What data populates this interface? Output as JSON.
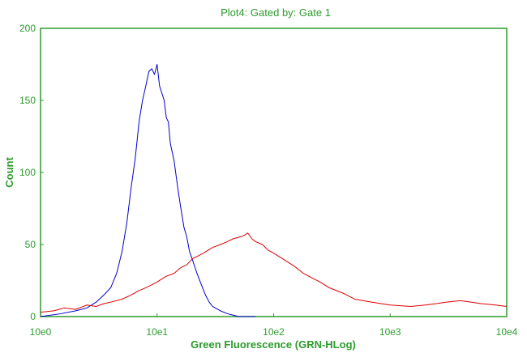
{
  "chart_data": {
    "type": "line",
    "title": "Plot4:  Gated by: Gate 1",
    "xlabel": "Green Fluorescence (GRN-HLog)",
    "ylabel": "Count",
    "x_scale": "log",
    "xlim": [
      1,
      10000
    ],
    "ylim": [
      0,
      200
    ],
    "x_ticks": [
      "10e0",
      "10e1",
      "10e2",
      "10e3",
      "10e4"
    ],
    "y_ticks": [
      "0",
      "50",
      "100",
      "150",
      "200"
    ],
    "grid": false,
    "series": [
      {
        "color": "#0000cc",
        "x": [
          1,
          1.5,
          2,
          2.5,
          3,
          3.5,
          4,
          4.5,
          5,
          5.5,
          6,
          6.5,
          7,
          7.5,
          8,
          8.5,
          9,
          9.5,
          10,
          10.5,
          11,
          11.5,
          12,
          12.5,
          13,
          14,
          15,
          16,
          17,
          18,
          19,
          20,
          22,
          24,
          26,
          28,
          30,
          35,
          40,
          45,
          50,
          60,
          70
        ],
        "y": [
          0,
          2,
          4,
          6,
          10,
          15,
          20,
          30,
          45,
          65,
          90,
          110,
          135,
          150,
          160,
          170,
          172,
          168,
          175,
          160,
          155,
          150,
          138,
          135,
          120,
          108,
          90,
          75,
          62,
          55,
          45,
          40,
          30,
          22,
          15,
          10,
          7,
          4,
          2,
          1,
          0,
          0,
          0
        ]
      },
      {
        "color": "#dd0000",
        "x": [
          1,
          1.3,
          1.6,
          2,
          2.5,
          3,
          3.5,
          4,
          5,
          6,
          7,
          8,
          9,
          10,
          12,
          14,
          16,
          18,
          20,
          25,
          30,
          35,
          40,
          45,
          50,
          55,
          60,
          65,
          70,
          80,
          90,
          100,
          120,
          150,
          180,
          200,
          250,
          300,
          400,
          500,
          700,
          1000,
          1500,
          2000,
          2500,
          3000,
          4000,
          5000,
          6000,
          8000,
          10000
        ],
        "y": [
          3,
          4,
          6,
          5,
          8,
          7,
          9,
          10,
          12,
          15,
          18,
          20,
          22,
          24,
          28,
          30,
          34,
          36,
          40,
          44,
          48,
          50,
          52,
          54,
          55,
          56,
          58,
          54,
          52,
          50,
          46,
          44,
          40,
          35,
          30,
          28,
          24,
          20,
          16,
          12,
          10,
          8,
          7,
          8,
          9,
          10,
          11,
          10,
          9,
          8,
          7
        ]
      }
    ]
  }
}
